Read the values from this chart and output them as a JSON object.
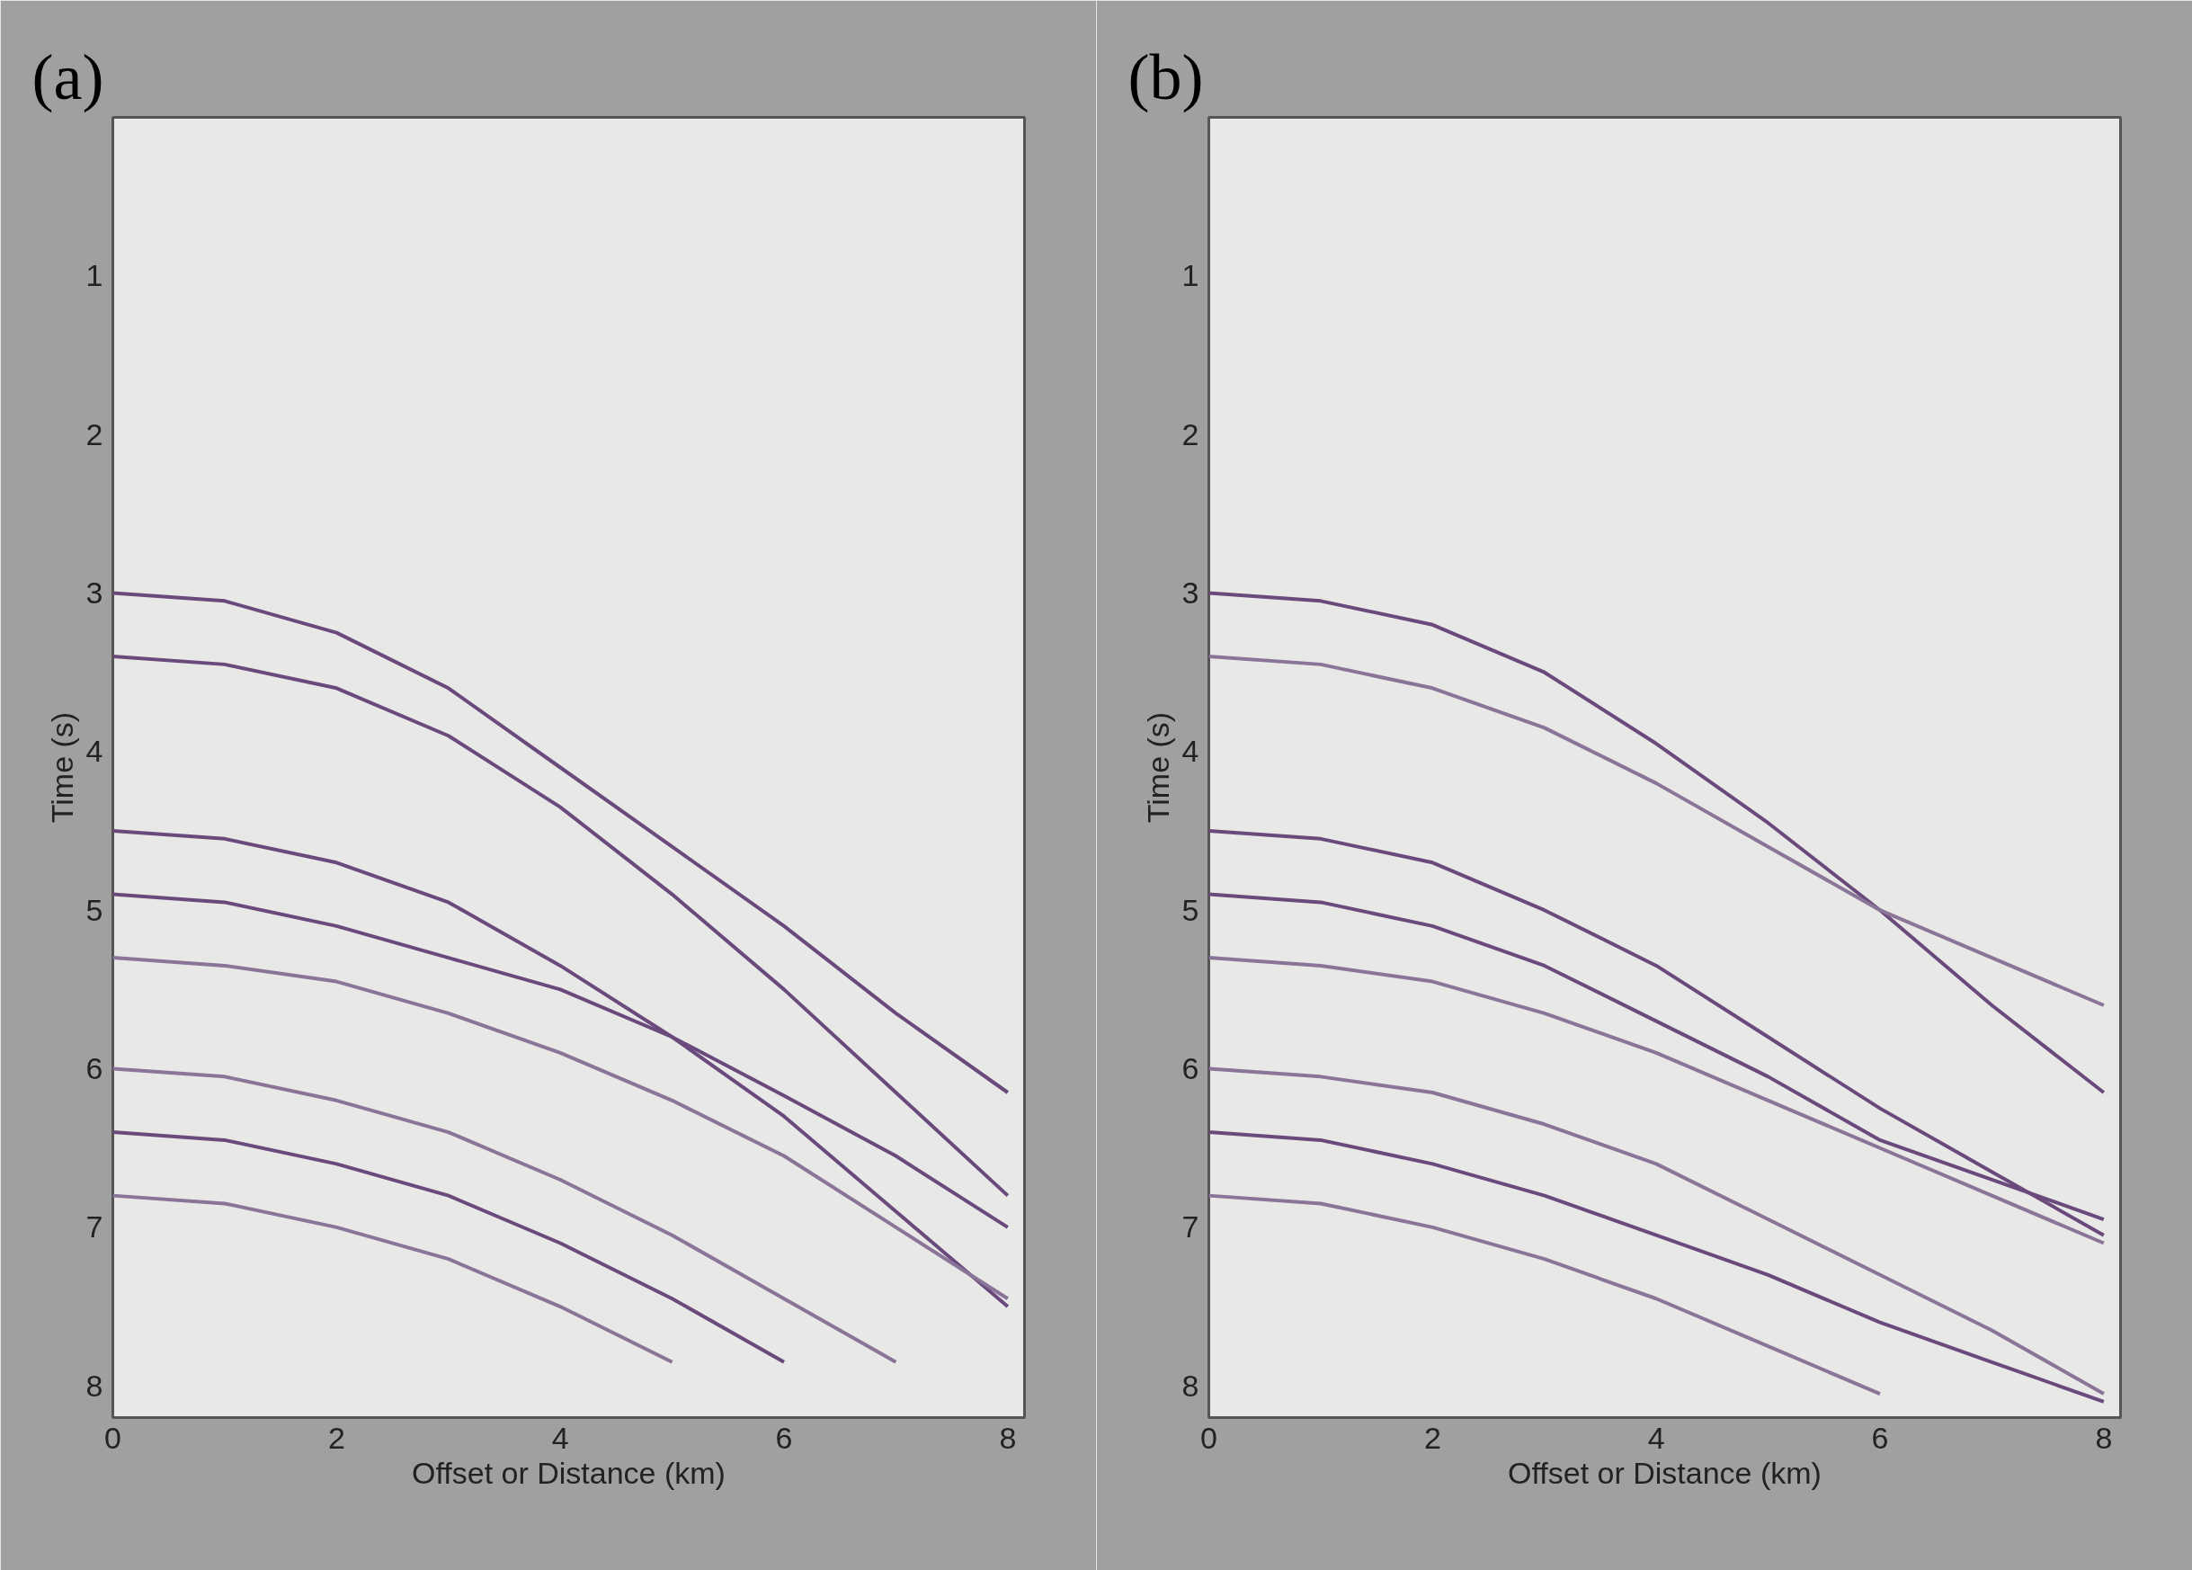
{
  "chart_data": [
    {
      "type": "line",
      "title": "(a)",
      "xlabel": "Offset or Distance (km)",
      "ylabel": "Time (s)",
      "x": [
        0,
        1,
        2,
        3,
        4,
        5,
        6,
        7,
        8
      ],
      "xlim": [
        0,
        8.15
      ],
      "ylim": [
        8.2,
        0
      ],
      "xticks": [
        0,
        2,
        4,
        6,
        8
      ],
      "yticks": [
        1,
        2,
        3,
        4,
        5,
        6,
        7,
        8
      ],
      "grid": false,
      "series": [
        {
          "color": "#6a4a7c",
          "values": [
            3.0,
            3.05,
            3.25,
            3.6,
            4.1,
            4.6,
            5.1,
            5.65,
            6.15
          ]
        },
        {
          "color": "#6a4a7c",
          "values": [
            3.4,
            3.45,
            3.6,
            3.9,
            4.35,
            4.9,
            5.5,
            6.15,
            6.8
          ]
        },
        {
          "color": "#6a4a7c",
          "values": [
            4.5,
            4.55,
            4.7,
            4.95,
            5.35,
            5.8,
            6.3,
            6.9,
            7.5
          ]
        },
        {
          "color": "#6a4a7c",
          "values": [
            4.9,
            4.95,
            5.1,
            5.3,
            5.5,
            5.8,
            6.17,
            6.55,
            7.0
          ]
        },
        {
          "color": "#8a7498",
          "values": [
            5.3,
            5.35,
            5.45,
            5.65,
            5.9,
            6.2,
            6.55,
            7.0,
            7.45
          ]
        },
        {
          "color": "#8a7498",
          "values": [
            6.0,
            6.05,
            6.2,
            6.4,
            6.7,
            7.05,
            7.45,
            7.85,
            null
          ]
        },
        {
          "color": "#6a4a7c",
          "values": [
            6.4,
            6.45,
            6.6,
            6.8,
            7.1,
            7.45,
            7.85,
            null,
            null
          ]
        },
        {
          "color": "#8a7498",
          "values": [
            6.8,
            6.85,
            7.0,
            7.2,
            7.5,
            7.85,
            null,
            null,
            null
          ]
        }
      ]
    },
    {
      "type": "line",
      "title": "(b)",
      "xlabel": "Offset or Distance (km)",
      "ylabel": "Time (s)",
      "x": [
        0,
        1,
        2,
        3,
        4,
        5,
        6,
        7,
        8
      ],
      "xlim": [
        0,
        8.15
      ],
      "ylim": [
        8.2,
        0
      ],
      "xticks": [
        0,
        2,
        4,
        6,
        8
      ],
      "yticks": [
        1,
        2,
        3,
        4,
        5,
        6,
        7,
        8
      ],
      "grid": false,
      "series": [
        {
          "color": "#6a4a7c",
          "values": [
            3.0,
            3.05,
            3.2,
            3.5,
            3.95,
            4.45,
            5.0,
            5.6,
            6.15
          ]
        },
        {
          "color": "#8a7498",
          "values": [
            3.4,
            3.45,
            3.6,
            3.85,
            4.2,
            4.6,
            5.0,
            5.3,
            5.6
          ]
        },
        {
          "color": "#6a4a7c",
          "values": [
            4.5,
            4.55,
            4.7,
            5.0,
            5.35,
            5.8,
            6.25,
            6.65,
            7.05
          ]
        },
        {
          "color": "#6a4a7c",
          "values": [
            4.9,
            4.95,
            5.1,
            5.35,
            5.7,
            6.05,
            6.45,
            6.7,
            6.95
          ]
        },
        {
          "color": "#8a7498",
          "values": [
            5.3,
            5.35,
            5.45,
            5.65,
            5.9,
            6.2,
            6.5,
            6.8,
            7.1
          ]
        },
        {
          "color": "#8a7498",
          "values": [
            6.0,
            6.05,
            6.15,
            6.35,
            6.6,
            6.95,
            7.3,
            7.65,
            8.05
          ]
        },
        {
          "color": "#6a4a7c",
          "values": [
            6.4,
            6.45,
            6.6,
            6.8,
            7.05,
            7.3,
            7.6,
            7.85,
            8.1
          ]
        },
        {
          "color": "#8a7498",
          "values": [
            6.8,
            6.85,
            7.0,
            7.2,
            7.45,
            7.75,
            8.05,
            null,
            null
          ]
        }
      ]
    }
  ]
}
